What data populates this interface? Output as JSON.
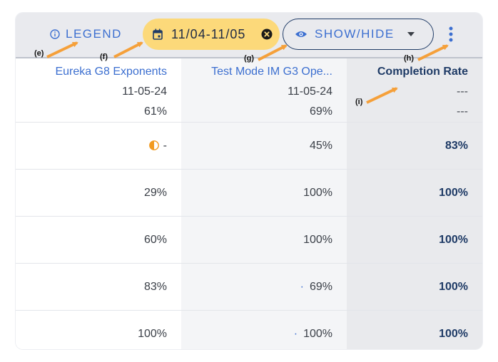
{
  "toolbar": {
    "legend_label": "LEGEND",
    "date_range": "11/04-11/05",
    "showhide_label": "SHOW/HIDE"
  },
  "annotations": {
    "e": "(e)",
    "f": "(f)",
    "g": "(g)",
    "h": "(h)",
    "i": "(i)"
  },
  "table": {
    "columns": [
      {
        "title": "Eureka G8 Exponents",
        "date": "11-05-24",
        "avg": "61%"
      },
      {
        "title": "Test Mode IM G3 Ope...",
        "date": "11-05-24",
        "avg": "69%"
      },
      {
        "title": "Completion Rate",
        "date": "---",
        "avg": "---"
      }
    ],
    "rows": [
      {
        "c1_mark": "-",
        "c2": "45%",
        "c3": "83%"
      },
      {
        "c1": "29%",
        "c2": "100%",
        "c3": "100%"
      },
      {
        "c1": "60%",
        "c2": "100%",
        "c3": "100%"
      },
      {
        "c1": "83%",
        "c2": "69%",
        "c3": "100%"
      },
      {
        "c1": "100%",
        "c2": "100%",
        "c3": "100%"
      }
    ]
  },
  "colors": {
    "accent": "#3c6fd0",
    "chip": "#fcd97a",
    "dark_text": "#1f3b66",
    "arrow": "#f5a03a"
  },
  "icons": [
    "info-icon",
    "calendar-icon",
    "clear-circle-icon",
    "eye-icon",
    "caret-down-icon",
    "kebab-menu-icon",
    "half-circle-status-icon",
    "dot-indicator-icon"
  ]
}
